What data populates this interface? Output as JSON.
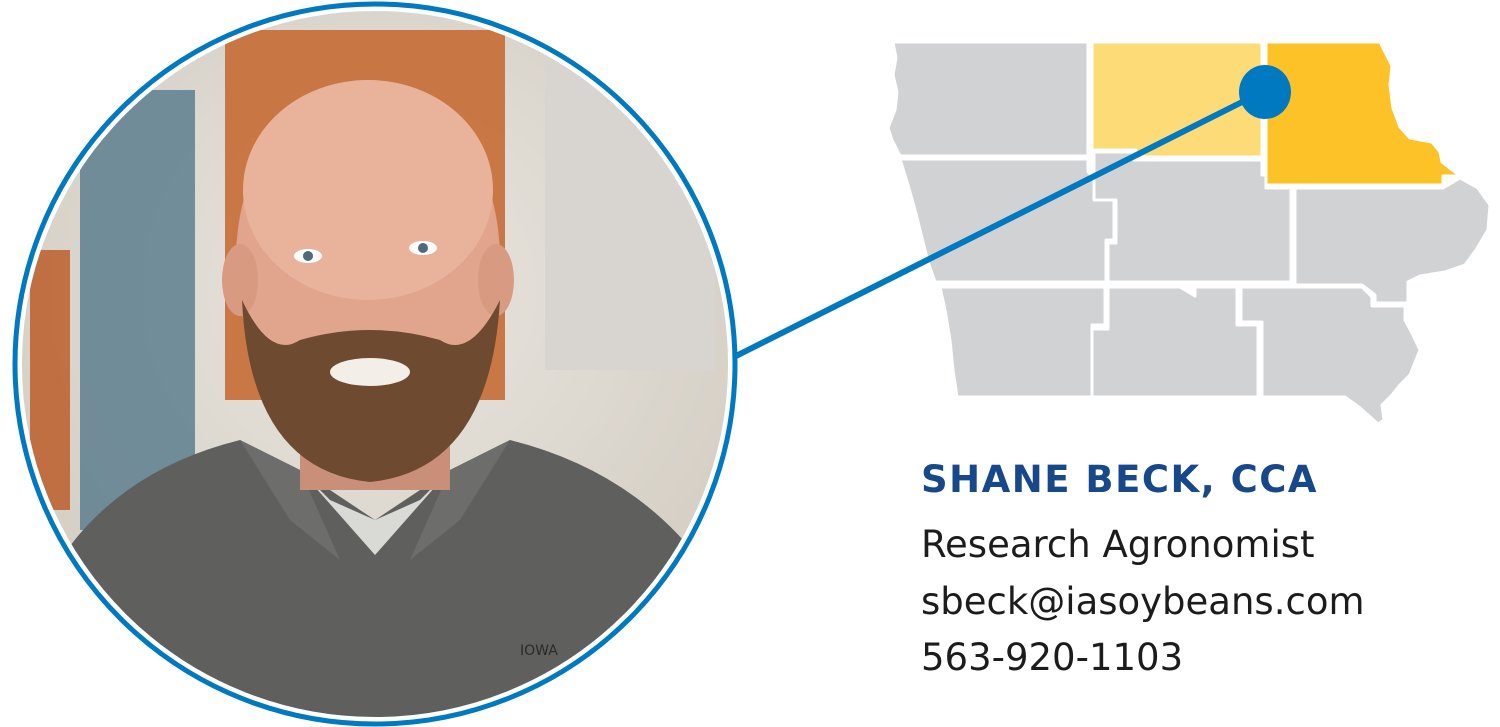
{
  "profile": {
    "name": "SHANE BECK, CCA",
    "title": "Research Agronomist",
    "email": "sbeck@iasoybeans.com",
    "phone": "563-920-1103",
    "shirt_logo": "IOWA"
  },
  "map": {
    "highlighted_region": "northeast",
    "secondary_region": "north-central"
  },
  "colors": {
    "accent_blue": "#0079c1",
    "name_blue": "#17498a",
    "map_gray": "#d1d2d4",
    "highlight_primary": "#fdc228",
    "highlight_secondary": "#fddc78"
  }
}
